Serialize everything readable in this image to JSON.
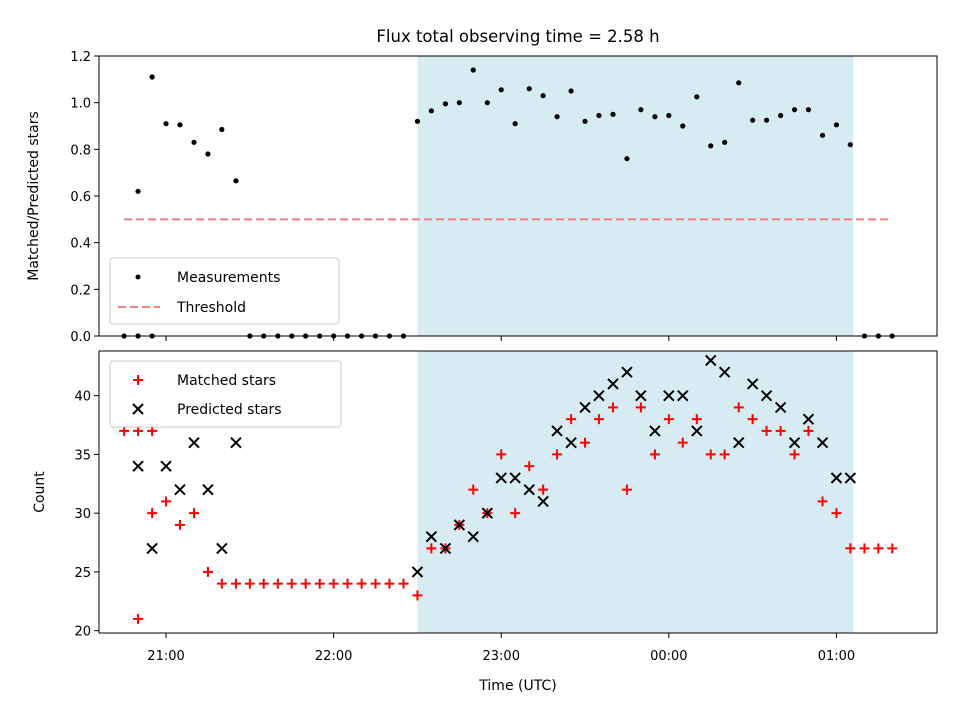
{
  "chart_data": [
    {
      "type": "scatter",
      "title": "Flux total observing time = 2.58 h",
      "xlabel": "",
      "ylabel": "Matched/Predicted stars",
      "ylim": [
        0,
        1.2
      ],
      "yticks": [
        "0.0",
        "0.2",
        "0.4",
        "0.6",
        "0.8",
        "1.0",
        "1.2"
      ],
      "x_range_hours": [
        20.6,
        25.6
      ],
      "shaded_span_hours": [
        22.5,
        25.1
      ],
      "shaded_color": "#add8e6",
      "threshold": {
        "value": 0.5,
        "x_start_hours": 20.75,
        "x_end_hours": 25.33,
        "color": "#f08080"
      },
      "legend_position": "lower-left",
      "legend": [
        {
          "label": "Measurements",
          "marker": "dot",
          "color": "#000000"
        },
        {
          "label": "Threshold",
          "marker": "dashed-line",
          "color": "#f08080"
        }
      ],
      "series": [
        {
          "name": "Measurements",
          "color": "#000000",
          "points": [
            [
              20.75,
              0
            ],
            [
              20.833,
              0
            ],
            [
              20.917,
              0
            ],
            [
              20.833,
              0.62
            ],
            [
              20.917,
              1.11
            ],
            [
              21.0,
              0.91
            ],
            [
              21.083,
              0.905
            ],
            [
              21.167,
              0.83
            ],
            [
              21.25,
              0.78
            ],
            [
              21.333,
              0.885
            ],
            [
              21.417,
              0.665
            ],
            [
              21.5,
              0
            ],
            [
              21.583,
              0
            ],
            [
              21.667,
              0
            ],
            [
              21.75,
              0
            ],
            [
              21.833,
              0
            ],
            [
              21.917,
              0
            ],
            [
              22.0,
              0
            ],
            [
              22.083,
              0
            ],
            [
              22.167,
              0
            ],
            [
              22.25,
              0
            ],
            [
              22.333,
              0
            ],
            [
              22.417,
              0
            ],
            [
              22.5,
              0.92
            ],
            [
              22.583,
              0.965
            ],
            [
              22.667,
              0.995
            ],
            [
              22.75,
              1.0
            ],
            [
              22.833,
              1.14
            ],
            [
              22.917,
              1.0
            ],
            [
              23.0,
              1.055
            ],
            [
              23.083,
              0.91
            ],
            [
              23.167,
              1.06
            ],
            [
              23.25,
              1.03
            ],
            [
              23.333,
              0.94
            ],
            [
              23.417,
              1.05
            ],
            [
              23.5,
              0.92
            ],
            [
              23.583,
              0.945
            ],
            [
              23.667,
              0.95
            ],
            [
              23.75,
              0.76
            ],
            [
              23.833,
              0.97
            ],
            [
              23.917,
              0.94
            ],
            [
              24.0,
              0.945
            ],
            [
              24.083,
              0.9
            ],
            [
              24.167,
              1.025
            ],
            [
              24.25,
              0.815
            ],
            [
              24.333,
              0.83
            ],
            [
              24.417,
              1.085
            ],
            [
              24.5,
              0.925
            ],
            [
              24.583,
              0.925
            ],
            [
              24.667,
              0.945
            ],
            [
              24.75,
              0.97
            ],
            [
              24.833,
              0.97
            ],
            [
              24.917,
              0.86
            ],
            [
              25.0,
              0.905
            ],
            [
              25.083,
              0.82
            ],
            [
              25.167,
              0
            ],
            [
              25.25,
              0
            ],
            [
              25.333,
              0
            ]
          ]
        }
      ]
    },
    {
      "type": "scatter",
      "title": "",
      "xlabel": "Time (UTC)",
      "ylabel": "Count",
      "ylim": [
        19.8,
        43.8
      ],
      "yticks": [
        "20",
        "25",
        "30",
        "35",
        "40"
      ],
      "x_range_hours": [
        20.6,
        25.6
      ],
      "xticks": [
        {
          "hours": 21,
          "label": "21:00"
        },
        {
          "hours": 22,
          "label": "22:00"
        },
        {
          "hours": 23,
          "label": "23:00"
        },
        {
          "hours": 24,
          "label": "00:00"
        },
        {
          "hours": 25,
          "label": "01:00"
        }
      ],
      "shaded_span_hours": [
        22.5,
        25.1
      ],
      "shaded_color": "#add8e6",
      "legend_position": "upper-left",
      "legend": [
        {
          "label": "Matched stars",
          "marker": "plus",
          "color": "#ff0000"
        },
        {
          "label": "Predicted stars",
          "marker": "x",
          "color": "#000000"
        }
      ],
      "series": [
        {
          "name": "Matched stars",
          "color": "#ff0000",
          "points": [
            [
              20.75,
              37
            ],
            [
              20.833,
              37
            ],
            [
              20.917,
              37
            ],
            [
              20.833,
              21
            ],
            [
              20.917,
              30
            ],
            [
              21.0,
              31
            ],
            [
              21.083,
              29
            ],
            [
              21.167,
              30
            ],
            [
              21.25,
              25
            ],
            [
              21.333,
              24
            ],
            [
              21.417,
              24
            ],
            [
              21.5,
              24
            ],
            [
              21.583,
              24
            ],
            [
              21.667,
              24
            ],
            [
              21.75,
              24
            ],
            [
              21.833,
              24
            ],
            [
              21.917,
              24
            ],
            [
              22.0,
              24
            ],
            [
              22.083,
              24
            ],
            [
              22.167,
              24
            ],
            [
              22.25,
              24
            ],
            [
              22.333,
              24
            ],
            [
              22.417,
              24
            ],
            [
              22.5,
              23
            ],
            [
              22.583,
              27
            ],
            [
              22.667,
              27
            ],
            [
              22.75,
              29
            ],
            [
              22.833,
              32
            ],
            [
              22.917,
              30
            ],
            [
              23.0,
              35
            ],
            [
              23.083,
              30
            ],
            [
              23.167,
              34
            ],
            [
              23.25,
              32
            ],
            [
              23.333,
              35
            ],
            [
              23.417,
              38
            ],
            [
              23.5,
              36
            ],
            [
              23.583,
              38
            ],
            [
              23.667,
              39
            ],
            [
              23.75,
              32
            ],
            [
              23.833,
              39
            ],
            [
              23.917,
              35
            ],
            [
              24.0,
              38
            ],
            [
              24.083,
              36
            ],
            [
              24.167,
              38
            ],
            [
              24.25,
              35
            ],
            [
              24.333,
              35
            ],
            [
              24.417,
              39
            ],
            [
              24.5,
              38
            ],
            [
              24.583,
              37
            ],
            [
              24.667,
              37
            ],
            [
              24.75,
              35
            ],
            [
              24.833,
              37
            ],
            [
              24.917,
              31
            ],
            [
              25.0,
              30
            ],
            [
              25.083,
              27
            ],
            [
              25.167,
              27
            ],
            [
              25.25,
              27
            ],
            [
              25.333,
              27
            ]
          ]
        },
        {
          "name": "Predicted stars",
          "color": "#000000",
          "points": [
            [
              20.833,
              34
            ],
            [
              20.917,
              27
            ],
            [
              21.0,
              34
            ],
            [
              21.083,
              32
            ],
            [
              21.167,
              36
            ],
            [
              21.25,
              32
            ],
            [
              21.333,
              27
            ],
            [
              21.417,
              36
            ],
            [
              22.5,
              25
            ],
            [
              22.583,
              28
            ],
            [
              22.667,
              27
            ],
            [
              22.75,
              29
            ],
            [
              22.833,
              28
            ],
            [
              22.917,
              30
            ],
            [
              23.0,
              33
            ],
            [
              23.083,
              33
            ],
            [
              23.167,
              32
            ],
            [
              23.25,
              31
            ],
            [
              23.333,
              37
            ],
            [
              23.417,
              36
            ],
            [
              23.5,
              39
            ],
            [
              23.583,
              40
            ],
            [
              23.667,
              41
            ],
            [
              23.75,
              42
            ],
            [
              23.833,
              40
            ],
            [
              23.917,
              37
            ],
            [
              24.0,
              40
            ],
            [
              24.083,
              40
            ],
            [
              24.167,
              37
            ],
            [
              24.25,
              43
            ],
            [
              24.333,
              42
            ],
            [
              24.417,
              36
            ],
            [
              24.5,
              41
            ],
            [
              24.583,
              40
            ],
            [
              24.667,
              39
            ],
            [
              24.75,
              36
            ],
            [
              24.833,
              38
            ],
            [
              24.917,
              36
            ],
            [
              25.0,
              33
            ],
            [
              25.083,
              33
            ]
          ]
        }
      ]
    }
  ]
}
